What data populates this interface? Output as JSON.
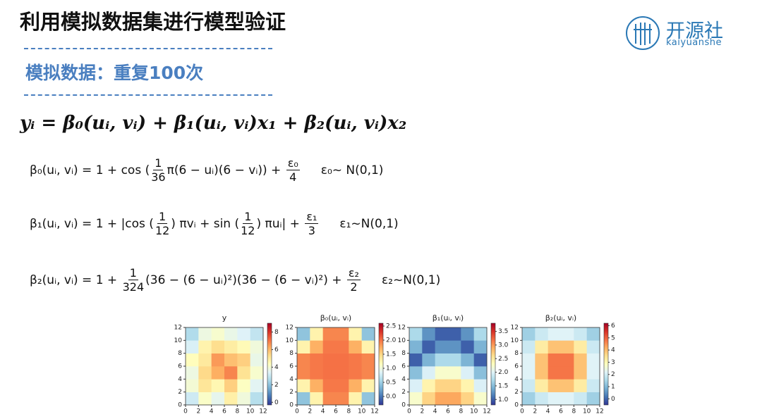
{
  "header": {
    "title": "利用模拟数据集进行模型验证",
    "subtitle": "模拟数据：重复100次",
    "logo_text": "开源社",
    "logo_sub": "kaiyuanshe"
  },
  "main_equation": "yᵢ = β₀(uᵢ, vᵢ) + β₁(uᵢ, vᵢ)x₁ + β₂(uᵢ, vᵢ)x₂",
  "formulas": [
    {
      "parts": [
        "β₀(uᵢ, vᵢ) = 1 + cos (",
        {
          "num": "1",
          "den": "36"
        },
        "π(6 − uᵢ)(6 − vᵢ)) + ",
        {
          "num": "ε₀",
          "den": "4"
        }
      ],
      "noise": "ε₀~ N(0,1)"
    },
    {
      "parts": [
        "β₁(uᵢ, vᵢ) = 1 + |cos (",
        {
          "num": "1",
          "den": "12"
        },
        ") πvᵢ + sin (",
        {
          "num": "1",
          "den": "12"
        },
        ") πuᵢ| + ",
        {
          "num": "ε₁",
          "den": "3"
        }
      ],
      "noise": "ε₁~N(0,1)"
    },
    {
      "parts": [
        "β₂(uᵢ, vᵢ) = 1 + ",
        {
          "num": "1",
          "den": "324"
        },
        "(36 − (6 − uᵢ)²)(36 − (6 − vᵢ)²) + ",
        {
          "num": "ε₂",
          "den": "2"
        }
      ],
      "noise": "ε₂~N(0,1)"
    }
  ],
  "heatmaps": [
    {
      "title": "y",
      "cmap": "RdYlBu_r",
      "xlim": [
        0,
        12
      ],
      "ylim": [
        0,
        12
      ],
      "clim": [
        -0.3,
        9
      ],
      "xticks": [
        0,
        2,
        4,
        6,
        8,
        10,
        12
      ],
      "yticks": [
        0,
        2,
        4,
        6,
        8,
        10,
        12
      ],
      "cticks": [
        0,
        2,
        4,
        6,
        8
      ],
      "cells": [
        [
          3.1,
          4.2,
          3.6,
          4.8,
          3.9,
          2.7
        ],
        [
          4.0,
          5.1,
          4.6,
          5.6,
          4.3,
          3.5
        ],
        [
          3.8,
          5.4,
          6.2,
          6.8,
          5.2,
          4.1
        ],
        [
          4.4,
          5.0,
          6.5,
          5.9,
          5.6,
          3.7
        ],
        [
          3.3,
          4.7,
          5.3,
          4.9,
          4.5,
          3.9
        ],
        [
          2.6,
          3.8,
          4.1,
          3.7,
          3.4,
          2.9
        ]
      ]
    },
    {
      "title": "β₀(uᵢ, vᵢ)",
      "cmap": "RdYlBu_r",
      "xlim": [
        0,
        12
      ],
      "ylim": [
        0,
        12
      ],
      "clim": [
        -0.3,
        2.6
      ],
      "xticks": [
        0,
        2,
        4,
        6,
        8,
        10,
        12
      ],
      "yticks": [
        0,
        2,
        4,
        6,
        8,
        10,
        12
      ],
      "cticks": [
        {
          "value": 0,
          "label": "0.0"
        },
        0.5,
        {
          "value": 1,
          "label": "1.0"
        },
        1.5,
        {
          "value": 2,
          "label": "2.0"
        },
        2.5
      ],
      "cells": [
        [
          0.43,
          1.26,
          1.91,
          1.91,
          1.26,
          0.43
        ],
        [
          1.26,
          1.71,
          1.97,
          1.97,
          1.71,
          1.26
        ],
        [
          1.91,
          1.97,
          2.0,
          2.0,
          1.97,
          1.91
        ],
        [
          1.91,
          1.97,
          2.0,
          2.0,
          1.97,
          1.91
        ],
        [
          1.26,
          1.71,
          1.97,
          1.97,
          1.71,
          1.26
        ],
        [
          0.43,
          1.26,
          1.91,
          1.91,
          1.26,
          0.43
        ]
      ]
    },
    {
      "title": "β₁(uᵢ, vᵢ)",
      "cmap": "RdYlBu_r",
      "xlim": [
        0,
        12
      ],
      "ylim": [
        0,
        12
      ],
      "clim": [
        0.8,
        3.8
      ],
      "xticks": [
        0,
        2,
        4,
        6,
        8,
        10,
        12
      ],
      "yticks": [
        0,
        2,
        4,
        6,
        8,
        10,
        12
      ],
      "cticks": [
        {
          "value": 1,
          "label": "1.0"
        },
        1.5,
        {
          "value": 2,
          "label": "2.0"
        },
        2.5,
        {
          "value": 3,
          "label": "3.0"
        },
        3.5
      ],
      "cells": [
        [
          2.23,
          2.67,
          2.93,
          2.93,
          2.67,
          2.23
        ],
        [
          1.97,
          2.41,
          2.67,
          2.67,
          2.41,
          1.97
        ],
        [
          1.52,
          1.97,
          2.23,
          2.23,
          1.97,
          1.52
        ],
        [
          1.0,
          1.45,
          1.71,
          1.71,
          1.45,
          1.0
        ],
        [
          1.45,
          1.0,
          1.26,
          1.26,
          1.0,
          1.45
        ],
        [
          1.71,
          1.26,
          1.0,
          1.0,
          1.26,
          1.71
        ]
      ]
    },
    {
      "title": "β₂(uᵢ, vᵢ)",
      "cmap": "RdYlBu_r",
      "xlim": [
        0,
        12
      ],
      "ylim": [
        0,
        12
      ],
      "clim": [
        -0.5,
        6.2
      ],
      "xticks": [
        0,
        2,
        4,
        6,
        8,
        10,
        12
      ],
      "yticks": [
        0,
        2,
        4,
        6,
        8,
        10,
        12
      ],
      "cticks": [
        0,
        1,
        2,
        3,
        4,
        5,
        6
      ],
      "cells": [
        [
          1.37,
          1.92,
          2.19,
          2.19,
          1.92,
          1.37
        ],
        [
          1.92,
          3.25,
          3.92,
          3.92,
          3.25,
          1.92
        ],
        [
          2.19,
          3.92,
          4.78,
          4.78,
          3.92,
          2.19
        ],
        [
          2.19,
          3.92,
          4.78,
          4.78,
          3.92,
          2.19
        ],
        [
          1.92,
          3.25,
          3.92,
          3.92,
          3.25,
          1.92
        ],
        [
          1.37,
          1.92,
          2.19,
          2.19,
          1.92,
          1.37
        ]
      ]
    }
  ]
}
